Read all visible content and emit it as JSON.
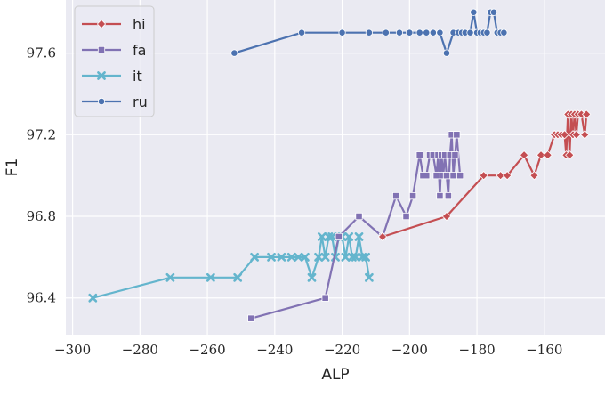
{
  "chart_data": {
    "type": "line",
    "title": "",
    "xlabel": "ALP",
    "ylabel": "F1",
    "xlim": [
      -302,
      -142
    ],
    "ylim": [
      96.22,
      97.86
    ],
    "xticks": [
      {
        "value": -300,
        "label": "−300"
      },
      {
        "value": -280,
        "label": "−280"
      },
      {
        "value": -260,
        "label": "−260"
      },
      {
        "value": -240,
        "label": "−240"
      },
      {
        "value": -220,
        "label": "−220"
      },
      {
        "value": -200,
        "label": "−200"
      },
      {
        "value": -180,
        "label": "−180"
      },
      {
        "value": -160,
        "label": "−160"
      }
    ],
    "yticks": [
      {
        "value": 96.4,
        "label": "96.4"
      },
      {
        "value": 96.8,
        "label": "96.8"
      },
      {
        "value": 97.2,
        "label": "97.2"
      },
      {
        "value": 97.6,
        "label": "97.6"
      }
    ],
    "grid": true,
    "legend": "top-left",
    "series": [
      {
        "name": "hi",
        "color": "#c44e52",
        "marker": "diamond",
        "x": [
          -208,
          -189,
          -178,
          -173,
          -171,
          -166,
          -163,
          -161,
          -159,
          -157,
          -156,
          -155,
          -154,
          -153.5,
          -153,
          -152.5,
          -152,
          -151.5,
          -151,
          -150.5,
          -150,
          -149,
          -148,
          -147.5
        ],
        "y": [
          96.7,
          96.8,
          97.0,
          97.0,
          97.0,
          97.1,
          97.0,
          97.1,
          97.1,
          97.2,
          97.2,
          97.2,
          97.2,
          97.1,
          97.3,
          97.1,
          97.3,
          97.2,
          97.3,
          97.2,
          97.3,
          97.3,
          97.2,
          97.3
        ]
      },
      {
        "name": "fa",
        "color": "#8172b3",
        "marker": "square",
        "x": [
          -247,
          -225,
          -221,
          -215,
          -208,
          -204,
          -201,
          -199,
          -197,
          -196,
          -195,
          -194,
          -193,
          -192,
          -191.5,
          -191,
          -190.5,
          -190,
          -189.5,
          -189,
          -188.5,
          -188,
          -187.5,
          -187,
          -186.5,
          -186,
          -185
        ],
        "y": [
          96.3,
          96.4,
          96.7,
          96.8,
          96.7,
          96.9,
          96.8,
          96.9,
          97.1,
          97.0,
          97.0,
          97.1,
          97.1,
          97.0,
          97.1,
          96.9,
          97.1,
          97.0,
          97.1,
          97.0,
          96.9,
          97.1,
          97.2,
          97.0,
          97.1,
          97.2,
          97.0
        ],
        "note": ""
      },
      {
        "name": "it",
        "color": "#64b5cd",
        "marker": "x",
        "x": [
          -294,
          -271,
          -259,
          -251,
          -246,
          -241,
          -238,
          -235,
          -233,
          -231,
          -229,
          -227,
          -226,
          -225,
          -224,
          -223,
          -222,
          -221,
          -220,
          -219,
          -218,
          -217,
          -216,
          -215,
          -214,
          -213,
          -212
        ],
        "y": [
          96.4,
          96.5,
          96.5,
          96.5,
          96.6,
          96.6,
          96.6,
          96.6,
          96.6,
          96.6,
          96.5,
          96.6,
          96.7,
          96.6,
          96.7,
          96.7,
          96.6,
          96.7,
          96.7,
          96.6,
          96.7,
          96.6,
          96.6,
          96.7,
          96.6,
          96.6,
          96.5
        ]
      },
      {
        "name": "ru",
        "color": "#4c72b0",
        "marker": "circle",
        "x": [
          -252,
          -232,
          -220,
          -212,
          -207,
          -203,
          -200,
          -197,
          -195,
          -193,
          -191,
          -189,
          -187,
          -185.5,
          -184.5,
          -183.5,
          -182,
          -181,
          -180,
          -179,
          -178,
          -177,
          -176,
          -175,
          -174,
          -173,
          -172
        ],
        "y": [
          97.6,
          97.7,
          97.7,
          97.7,
          97.7,
          97.7,
          97.7,
          97.7,
          97.7,
          97.7,
          97.7,
          97.6,
          97.7,
          97.7,
          97.7,
          97.7,
          97.7,
          97.8,
          97.7,
          97.7,
          97.7,
          97.7,
          97.8,
          97.8,
          97.7,
          97.7,
          97.7
        ]
      }
    ]
  }
}
